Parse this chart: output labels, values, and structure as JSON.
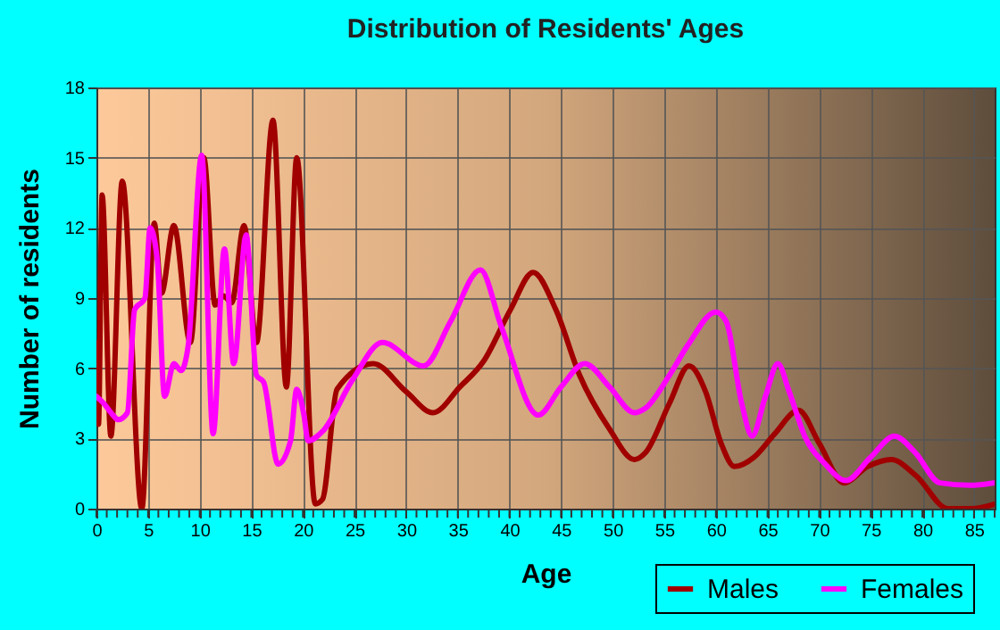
{
  "chart_data": {
    "type": "line",
    "title": "Distribution of Residents' Ages",
    "xlabel": "Age",
    "ylabel": "Number of residents",
    "xlim": [
      0,
      87
    ],
    "xticks": [
      0,
      5,
      10,
      15,
      20,
      25,
      30,
      35,
      40,
      45,
      50,
      55,
      60,
      65,
      70,
      75,
      80,
      85
    ],
    "ylim": [
      0,
      18
    ],
    "yticks": [
      0,
      3,
      6,
      9,
      12,
      15,
      18
    ],
    "grid": true,
    "legend": "bottom right",
    "line_style": "solid",
    "marker": "none",
    "series": [
      {
        "name": "Males",
        "color": "#a00000",
        "x": [
          0,
          0.2,
          0.55,
          1.4,
          2.5,
          4.4,
          5.6,
          6.3,
          7.5,
          9.1,
          10.4,
          11.5,
          12.3,
          13.1,
          14.3,
          15.5,
          17.1,
          18.4,
          19.4,
          21.2,
          21.9,
          23.3,
          26.8,
          30,
          32.6,
          35.2,
          37.5,
          40.1,
          42.3,
          44.5,
          46.8,
          49.7,
          52.1,
          53.2,
          55.5,
          57.4,
          59,
          60.5,
          61.8,
          63.7,
          65.7,
          68,
          70,
          72.4,
          74.7,
          77,
          79.4,
          82.5,
          84.8,
          87
        ],
        "values": [
          7.1,
          3.6,
          13.4,
          3.1,
          14,
          0,
          12.2,
          9.2,
          12.1,
          7.1,
          15,
          8.7,
          9.1,
          8.8,
          12.1,
          7.1,
          16.6,
          5.2,
          15,
          0.2,
          0.4,
          5.1,
          6.2,
          5,
          4.1,
          5.2,
          6.3,
          8.5,
          10.1,
          8.5,
          5.7,
          3.4,
          2.1,
          2.4,
          4.5,
          6.1,
          5,
          2.8,
          1.8,
          2.2,
          3.2,
          4.2,
          2.8,
          1.1,
          1.8,
          2.1,
          1.4,
          0,
          0,
          0.2
        ]
      },
      {
        "name": "Females",
        "color": "#ff00ff",
        "x": [
          0,
          0.7,
          1.6,
          2.1,
          3,
          3.7,
          4.7,
          5.2,
          5.9,
          6.6,
          7.5,
          8.2,
          8.9,
          10.2,
          11.3,
          12.4,
          13.3,
          14.5,
          15.5,
          16.2,
          17.6,
          18.8,
          19.4,
          20.1,
          20.5,
          21.9,
          24.8,
          27.7,
          31.7,
          34.3,
          37.2,
          39.2,
          42.8,
          45,
          47.3,
          49.7,
          52.1,
          53.2,
          55.5,
          57.3,
          60,
          61,
          62.5,
          63.5,
          64.8,
          66,
          67.1,
          68.6,
          70.6,
          72.6,
          75,
          77.3,
          79.3,
          81.7,
          84.6,
          86.9
        ],
        "values": [
          4.8,
          4.5,
          4,
          3.8,
          4.1,
          8.5,
          9,
          12,
          10.6,
          4.8,
          6.2,
          5.9,
          7,
          15.1,
          3.2,
          11.1,
          6.2,
          11.7,
          5.7,
          5.4,
          1.9,
          2.9,
          5.1,
          4,
          2.9,
          3.3,
          5.5,
          7.1,
          6.1,
          8,
          10.2,
          7.8,
          4,
          5.2,
          6.2,
          5.2,
          4.1,
          4.3,
          5.7,
          7,
          8.4,
          8,
          4.5,
          3.1,
          4.8,
          6.2,
          5,
          3.1,
          1.9,
          1.2,
          2.2,
          3.1,
          2.4,
          1.1,
          1,
          1.1
        ]
      }
    ]
  }
}
